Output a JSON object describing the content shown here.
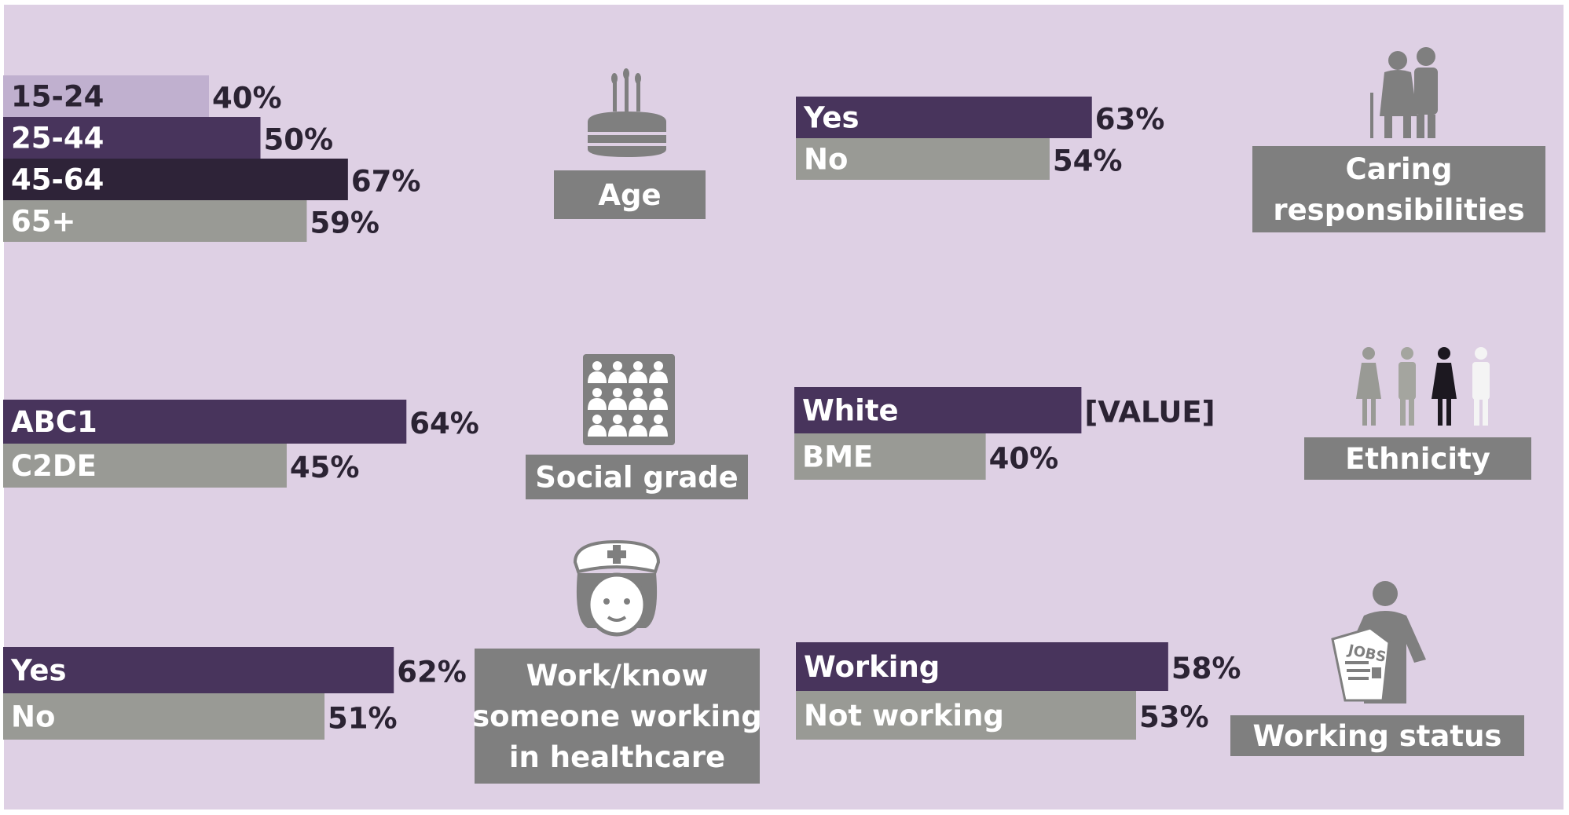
{
  "colors": {
    "background": "#ded0e4",
    "purple": "#48345c",
    "gray": "#999a95",
    "lavender": "#c0b0cf",
    "dark_purple": "#2e2338",
    "category_box": "#7f7f7f",
    "text_dark": "#2b2333",
    "text_light": "#ffffff"
  },
  "chart_data": [
    {
      "type": "bar",
      "orientation": "horizontal",
      "title": "Age",
      "icon": "birthday-cake-icon",
      "categories": [
        "15-24",
        "25-44",
        "45-64",
        "65+"
      ],
      "values": [
        40,
        50,
        67,
        59
      ],
      "value_labels": [
        "40%",
        "50%",
        "67%",
        "59%"
      ],
      "bar_colors": [
        "#c0b0cf",
        "#48345c",
        "#2e2338",
        "#999a95"
      ],
      "label_colors": [
        "#2b2333",
        "#ffffff",
        "#ffffff",
        "#ffffff"
      ]
    },
    {
      "type": "bar",
      "orientation": "horizontal",
      "title": "Caring responsibilities",
      "title_lines": [
        "Caring",
        "responsibilities"
      ],
      "icon": "elderly-couple-icon",
      "categories": [
        "Yes",
        "No"
      ],
      "values": [
        63,
        54
      ],
      "value_labels": [
        "63%",
        "54%"
      ],
      "bar_colors": [
        "#48345c",
        "#999a95"
      ],
      "label_colors": [
        "#ffffff",
        "#ffffff"
      ]
    },
    {
      "type": "bar",
      "orientation": "horizontal",
      "title": "Social grade",
      "icon": "crowd-icon",
      "categories": [
        "ABC1",
        "C2DE"
      ],
      "values": [
        64,
        45
      ],
      "value_labels": [
        "64%",
        "45%"
      ],
      "bar_colors": [
        "#48345c",
        "#999a95"
      ],
      "label_colors": [
        "#ffffff",
        "#ffffff"
      ]
    },
    {
      "type": "bar",
      "orientation": "horizontal",
      "title": "Ethnicity",
      "icon": "people-icon",
      "categories": [
        "White",
        "BME"
      ],
      "values": [
        60,
        40
      ],
      "value_labels": [
        "[VALUE]",
        "40%"
      ],
      "bar_colors": [
        "#48345c",
        "#999a95"
      ],
      "label_colors": [
        "#ffffff",
        "#ffffff"
      ]
    },
    {
      "type": "bar",
      "orientation": "horizontal",
      "title": "Work/know someone working in healthcare",
      "title_lines": [
        "Work/know",
        "someone working",
        "in healthcare"
      ],
      "icon": "nurse-icon",
      "categories": [
        "Yes",
        "No"
      ],
      "values": [
        62,
        51
      ],
      "value_labels": [
        "62%",
        "51%"
      ],
      "bar_colors": [
        "#48345c",
        "#999a95"
      ],
      "label_colors": [
        "#ffffff",
        "#ffffff"
      ]
    },
    {
      "type": "bar",
      "orientation": "horizontal",
      "title": "Working status",
      "icon": "jobs-newspaper-icon",
      "categories": [
        "Working",
        "Not working"
      ],
      "values": [
        58,
        53
      ],
      "value_labels": [
        "58%",
        "53%"
      ],
      "bar_colors": [
        "#48345c",
        "#999a95"
      ],
      "label_colors": [
        "#ffffff",
        "#ffffff"
      ]
    }
  ]
}
